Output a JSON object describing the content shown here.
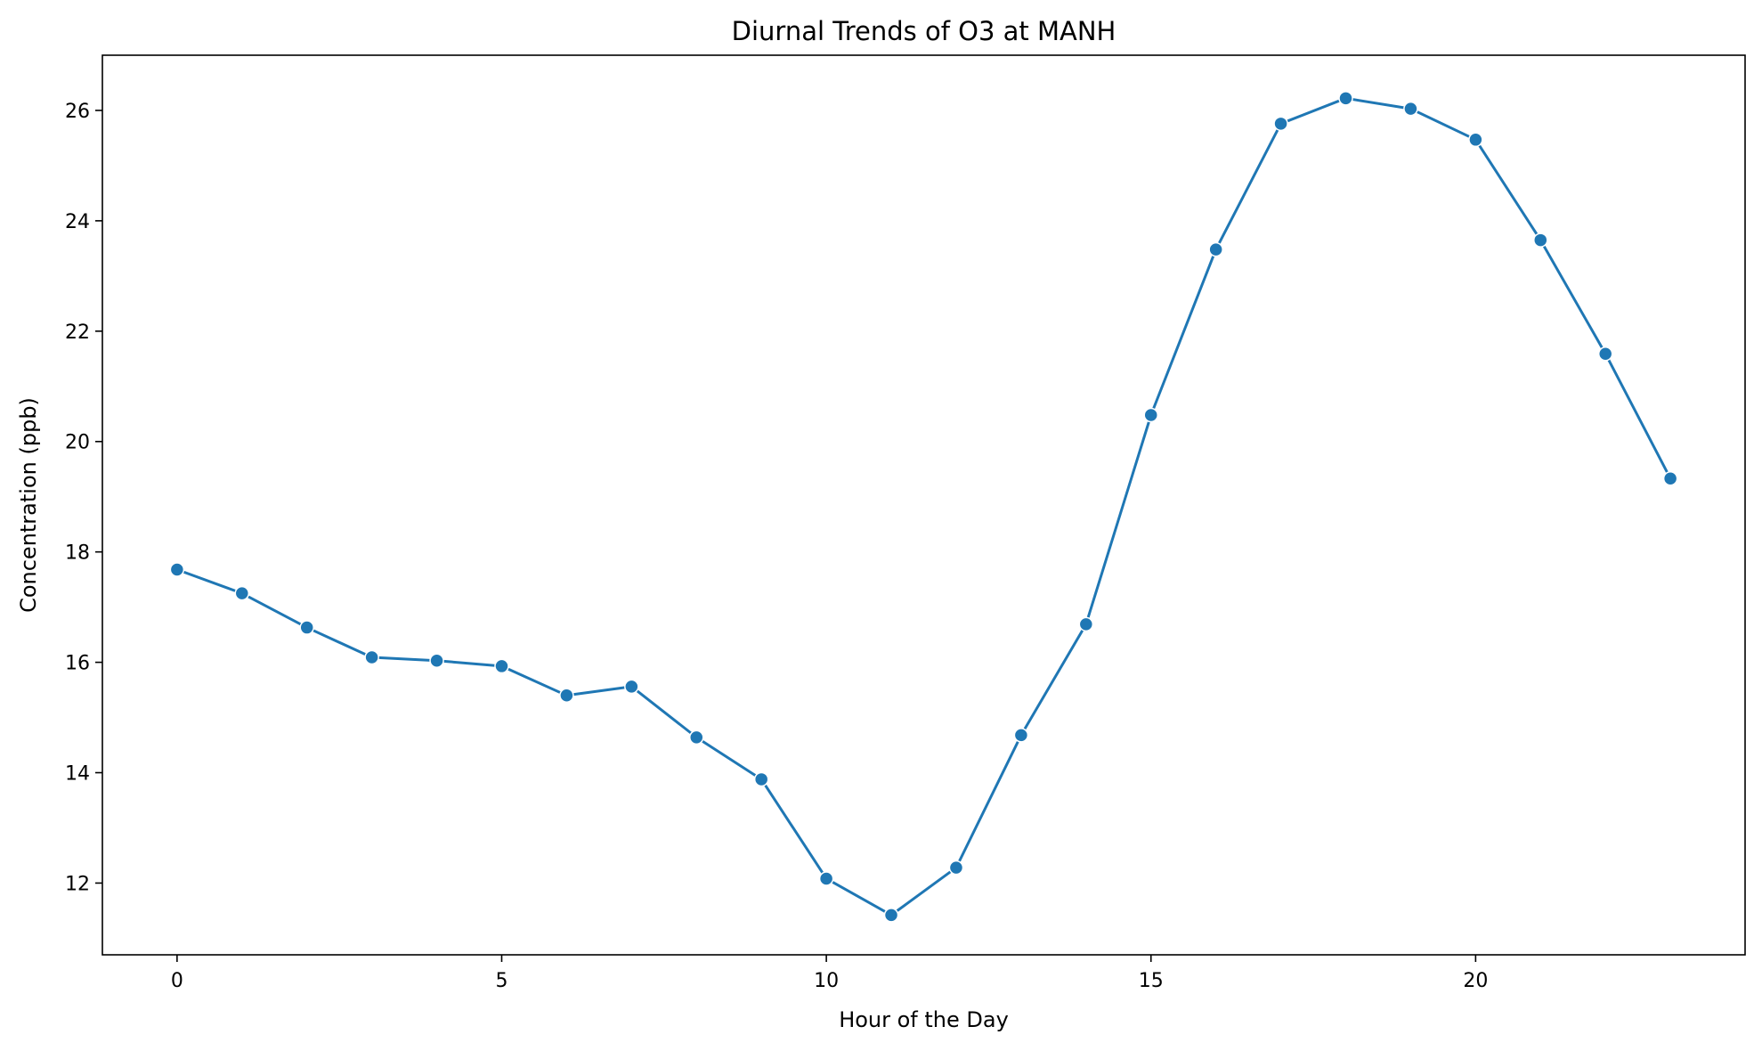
{
  "chart_data": {
    "type": "line",
    "title": "Diurnal Trends of O3 at MANH",
    "xlabel": "Hour of the Day",
    "ylabel": "Concentration (ppb)",
    "xlim": [
      -1.15,
      24.15
    ],
    "ylim": [
      10.7,
      27.0
    ],
    "xticks": [
      0,
      5,
      10,
      15,
      20
    ],
    "yticks": [
      12,
      14,
      16,
      18,
      20,
      22,
      24,
      26
    ],
    "grid": false,
    "legend": "none",
    "colors": {
      "line": "#1f77b4",
      "marker": "#1f77b4",
      "marker_edge": "#ffffff",
      "axes": "#000000"
    },
    "series": [
      {
        "x": [
          0,
          1,
          2,
          3,
          4,
          5,
          6,
          7,
          8,
          9,
          10,
          11,
          12,
          13,
          14,
          15,
          16,
          17,
          18,
          19,
          20,
          21,
          22,
          23
        ],
        "values": [
          17.68,
          17.25,
          16.63,
          16.09,
          16.03,
          15.93,
          15.4,
          15.56,
          14.64,
          13.88,
          12.08,
          11.42,
          12.28,
          14.68,
          16.69,
          20.48,
          23.48,
          25.76,
          26.22,
          26.03,
          25.47,
          23.65,
          21.59,
          19.33
        ]
      }
    ]
  }
}
